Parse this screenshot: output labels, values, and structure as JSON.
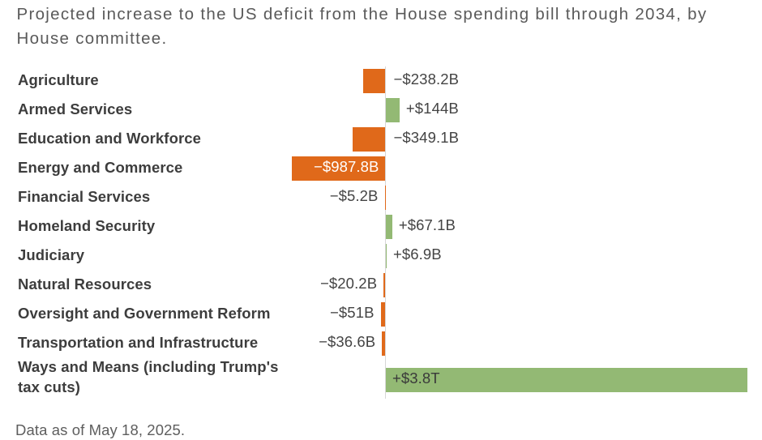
{
  "chart_data": {
    "type": "bar",
    "orientation": "horizontal_diverging",
    "title": "Projected increase to the US deficit from the House spending bill through 2034, by House committee.",
    "footer_note": "Data as of May 18, 2025.",
    "unit": "USD billions",
    "xlim": [
      -1000,
      3800
    ],
    "baseline": 0,
    "gridlines": "none",
    "legend": "none",
    "categories": [
      "Agriculture",
      "Armed Services",
      "Education and Workforce",
      "Energy and Commerce",
      "Financial Services",
      "Homeland Security",
      "Judiciary",
      "Natural Resources",
      "Oversight and Government Reform",
      "Transportation and Infrastructure",
      "Ways and Means (including Trump's tax cuts)"
    ],
    "values": [
      -238.2,
      144,
      -349.1,
      -987.8,
      -5.2,
      67.1,
      6.9,
      -20.2,
      -51,
      -36.6,
      3800
    ],
    "rows": [
      {
        "category": "Agriculture",
        "value_billions": -238.2,
        "value_label": "−$238.2B",
        "value_label_placement": "right_of_axis"
      },
      {
        "category": "Armed Services",
        "value_billions": 144,
        "value_label": "+$144B",
        "value_label_placement": "right_of_bar"
      },
      {
        "category": "Education and Workforce",
        "value_billions": -349.1,
        "value_label": "−$349.1B",
        "value_label_placement": "right_of_axis"
      },
      {
        "category": "Energy and Commerce",
        "value_billions": -987.8,
        "value_label": "−$987.8B",
        "value_label_placement": "inside_bar_right"
      },
      {
        "category": "Financial Services",
        "value_billions": -5.2,
        "value_label": "−$5.2B",
        "value_label_placement": "left_of_bar"
      },
      {
        "category": "Homeland Security",
        "value_billions": 67.1,
        "value_label": "+$67.1B",
        "value_label_placement": "right_of_bar"
      },
      {
        "category": "Judiciary",
        "value_billions": 6.9,
        "value_label": "+$6.9B",
        "value_label_placement": "right_of_bar"
      },
      {
        "category": "Natural Resources",
        "value_billions": -20.2,
        "value_label": "−$20.2B",
        "value_label_placement": "left_of_bar"
      },
      {
        "category": "Oversight and Government Reform",
        "value_billions": -51,
        "value_label": "−$51B",
        "value_label_placement": "left_of_bar"
      },
      {
        "category": "Transportation and Infrastructure",
        "value_billions": -36.6,
        "value_label": "−$36.6B",
        "value_label_placement": "left_of_bar"
      },
      {
        "category": "Ways and Means (including Trump's tax cuts)",
        "value_billions": 3800,
        "value_label": "+$3.8T",
        "value_label_placement": "inside_bar_left",
        "two_line_label": true
      }
    ],
    "colors": {
      "negative_bar": "#e0691a",
      "positive_bar": "#93b974",
      "axis_line": "#d7d7d7",
      "title_text": "#5a5a5a",
      "category_text": "#3d3d3d",
      "value_text": "#444444",
      "value_text_inside_negative": "#ffffff",
      "value_text_inside_positive": "#3a3a3a",
      "footer_text": "#5e5e5e"
    }
  }
}
